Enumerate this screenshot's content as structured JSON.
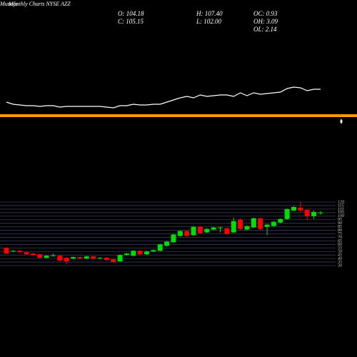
{
  "header": {
    "watermark": "Munafa",
    "title": "Monthly Charts NYSE AZZ",
    "stats": [
      "O: 104.18",
      "H: 107.40",
      "OC: 0.93",
      "C: 105.15",
      "L: 102.00",
      "OH: 3.09",
      "OL: 2.14"
    ]
  },
  "chart_data": [
    {
      "type": "line",
      "color": "#ffffff",
      "reference_color": "#ff9900",
      "values": [
        57,
        54,
        53,
        52,
        52,
        51,
        52,
        52,
        50,
        51,
        51,
        51,
        51,
        51,
        51,
        50,
        49,
        52,
        52,
        54,
        53,
        53,
        54,
        54,
        57,
        60,
        63,
        65,
        63,
        67,
        65,
        66,
        67,
        67,
        65,
        70,
        66,
        70,
        68,
        69,
        70,
        71,
        76,
        78,
        77,
        73,
        75,
        75
      ]
    },
    {
      "type": "candlestick",
      "up_color": "#00dd00",
      "down_color": "#ff0000",
      "grid": true,
      "ylim": [
        30,
        120
      ],
      "yticks": [
        30,
        35,
        40,
        45,
        50,
        55,
        60,
        65,
        70,
        75,
        80,
        85,
        90,
        95,
        100,
        105,
        110,
        115,
        120
      ],
      "open": [
        55,
        50,
        51,
        49,
        47,
        46,
        41,
        44,
        44,
        41,
        40,
        42,
        40,
        43,
        40,
        41,
        39,
        36,
        45,
        44,
        51,
        46,
        50,
        51,
        58,
        63,
        72,
        79,
        73,
        85,
        77,
        81,
        83,
        83,
        77,
        95,
        81,
        84,
        97,
        85,
        86,
        91,
        96,
        108,
        112,
        109,
        100,
        104.18
      ],
      "high": [
        56,
        52,
        52,
        50,
        48,
        47,
        45,
        47,
        45,
        42,
        43,
        43,
        44,
        44,
        42,
        42,
        40,
        46,
        48,
        52,
        52,
        51,
        53,
        61,
        65,
        75,
        80,
        80,
        86,
        86,
        83,
        85,
        85,
        84,
        98,
        97,
        87,
        98,
        98,
        89,
        93,
        97,
        111,
        114,
        120,
        110,
        108,
        107.4
      ],
      "low": [
        46,
        49,
        48,
        45,
        44,
        40,
        40,
        43,
        36,
        32,
        39,
        39,
        39,
        39,
        39,
        37,
        34,
        35,
        44,
        43,
        45,
        45,
        49,
        50,
        57,
        62,
        71,
        71,
        72,
        75,
        76,
        80,
        77,
        74,
        76,
        80,
        80,
        83,
        80,
        73,
        85,
        90,
        95,
        107,
        106,
        94,
        96,
        102.0
      ],
      "close": [
        47,
        51,
        49,
        46,
        45,
        41,
        44,
        44.5,
        37,
        36,
        42,
        40,
        43,
        40,
        41,
        38,
        35,
        45,
        47,
        51,
        46,
        50,
        52,
        60,
        64,
        74,
        79,
        72,
        85,
        76,
        82,
        84,
        84,
        75,
        93,
        82,
        86,
        97,
        82,
        88,
        92,
        96,
        110,
        113,
        108,
        100,
        106,
        105.15
      ]
    }
  ]
}
